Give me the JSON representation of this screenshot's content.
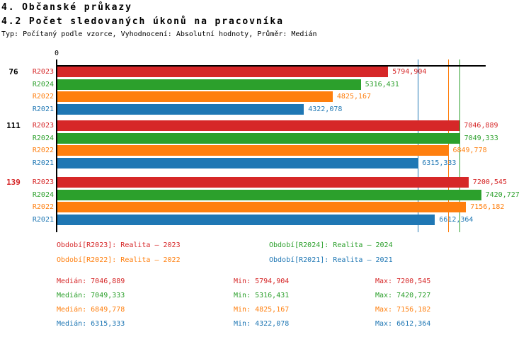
{
  "header": {
    "title1": "4. Občanské průkazy",
    "title2": "4.2 Počet sledovaných úkonů na pracovníka",
    "subtitle": "Typ: Počítaný podle vzorce, Vyhodnocení: Absolutní hodnoty, Průměr: Medián"
  },
  "colors": {
    "R2023": "#d62728",
    "R2024": "#2ca02c",
    "R2022": "#ff7f0e",
    "R2021": "#1f77b4",
    "axis": "#000000",
    "group_label_default": "#000000",
    "group_label_highlight": "#d62728"
  },
  "chart_data": {
    "type": "bar",
    "orientation": "horizontal",
    "value_axis_label": "0",
    "xlim": [
      0,
      7500
    ],
    "grid": false,
    "series_legend_order": [
      "R2023",
      "R2024",
      "R2022",
      "R2021"
    ],
    "groups": [
      {
        "label": "76",
        "label_color": "#000000",
        "bars": [
          {
            "series": "R2023",
            "value": 5794.904,
            "display": "5794,904"
          },
          {
            "series": "R2024",
            "value": 5316.431,
            "display": "5316,431"
          },
          {
            "series": "R2022",
            "value": 4825.167,
            "display": "4825,167"
          },
          {
            "series": "R2021",
            "value": 4322.078,
            "display": "4322,078"
          }
        ]
      },
      {
        "label": "111",
        "label_color": "#000000",
        "bars": [
          {
            "series": "R2023",
            "value": 7046.889,
            "display": "7046,889"
          },
          {
            "series": "R2024",
            "value": 7049.333,
            "display": "7049,333"
          },
          {
            "series": "R2022",
            "value": 6849.778,
            "display": "6849,778"
          },
          {
            "series": "R2021",
            "value": 6315.333,
            "display": "6315,333"
          }
        ]
      },
      {
        "label": "139",
        "label_color": "#d62728",
        "bars": [
          {
            "series": "R2023",
            "value": 7200.545,
            "display": "7200,545"
          },
          {
            "series": "R2024",
            "value": 7420.727,
            "display": "7420,727"
          },
          {
            "series": "R2022",
            "value": 7156.182,
            "display": "7156,182"
          },
          {
            "series": "R2021",
            "value": 6612.364,
            "display": "6612,364"
          }
        ]
      }
    ],
    "median_lines": [
      {
        "series": "R2021",
        "value": 6315.333
      },
      {
        "series": "R2022",
        "value": 6849.778
      },
      {
        "series": "R2023",
        "value": 7046.889
      },
      {
        "series": "R2024",
        "value": 7049.333
      }
    ]
  },
  "legend": {
    "rows": [
      [
        {
          "series": "R2023",
          "text": "Období[R2023]: Realita – 2023"
        },
        {
          "series": "R2024",
          "text": "Období[R2024]: Realita – 2024"
        }
      ],
      [
        {
          "series": "R2022",
          "text": "Období[R2022]: Realita – 2022"
        },
        {
          "series": "R2021",
          "text": "Období[R2021]: Realita – 2021"
        }
      ]
    ]
  },
  "stats": {
    "rows": [
      {
        "series": "R2023",
        "median": "Medián: 7046,889",
        "min": "Min: 5794,904",
        "max": "Max: 7200,545"
      },
      {
        "series": "R2024",
        "median": "Medián: 7049,333",
        "min": "Min: 5316,431",
        "max": "Max: 7420,727"
      },
      {
        "series": "R2022",
        "median": "Medián: 6849,778",
        "min": "Min: 4825,167",
        "max": "Max: 7156,182"
      },
      {
        "series": "R2021",
        "median": "Medián: 6315,333",
        "min": "Min: 4322,078",
        "max": "Max: 6612,364"
      }
    ]
  }
}
